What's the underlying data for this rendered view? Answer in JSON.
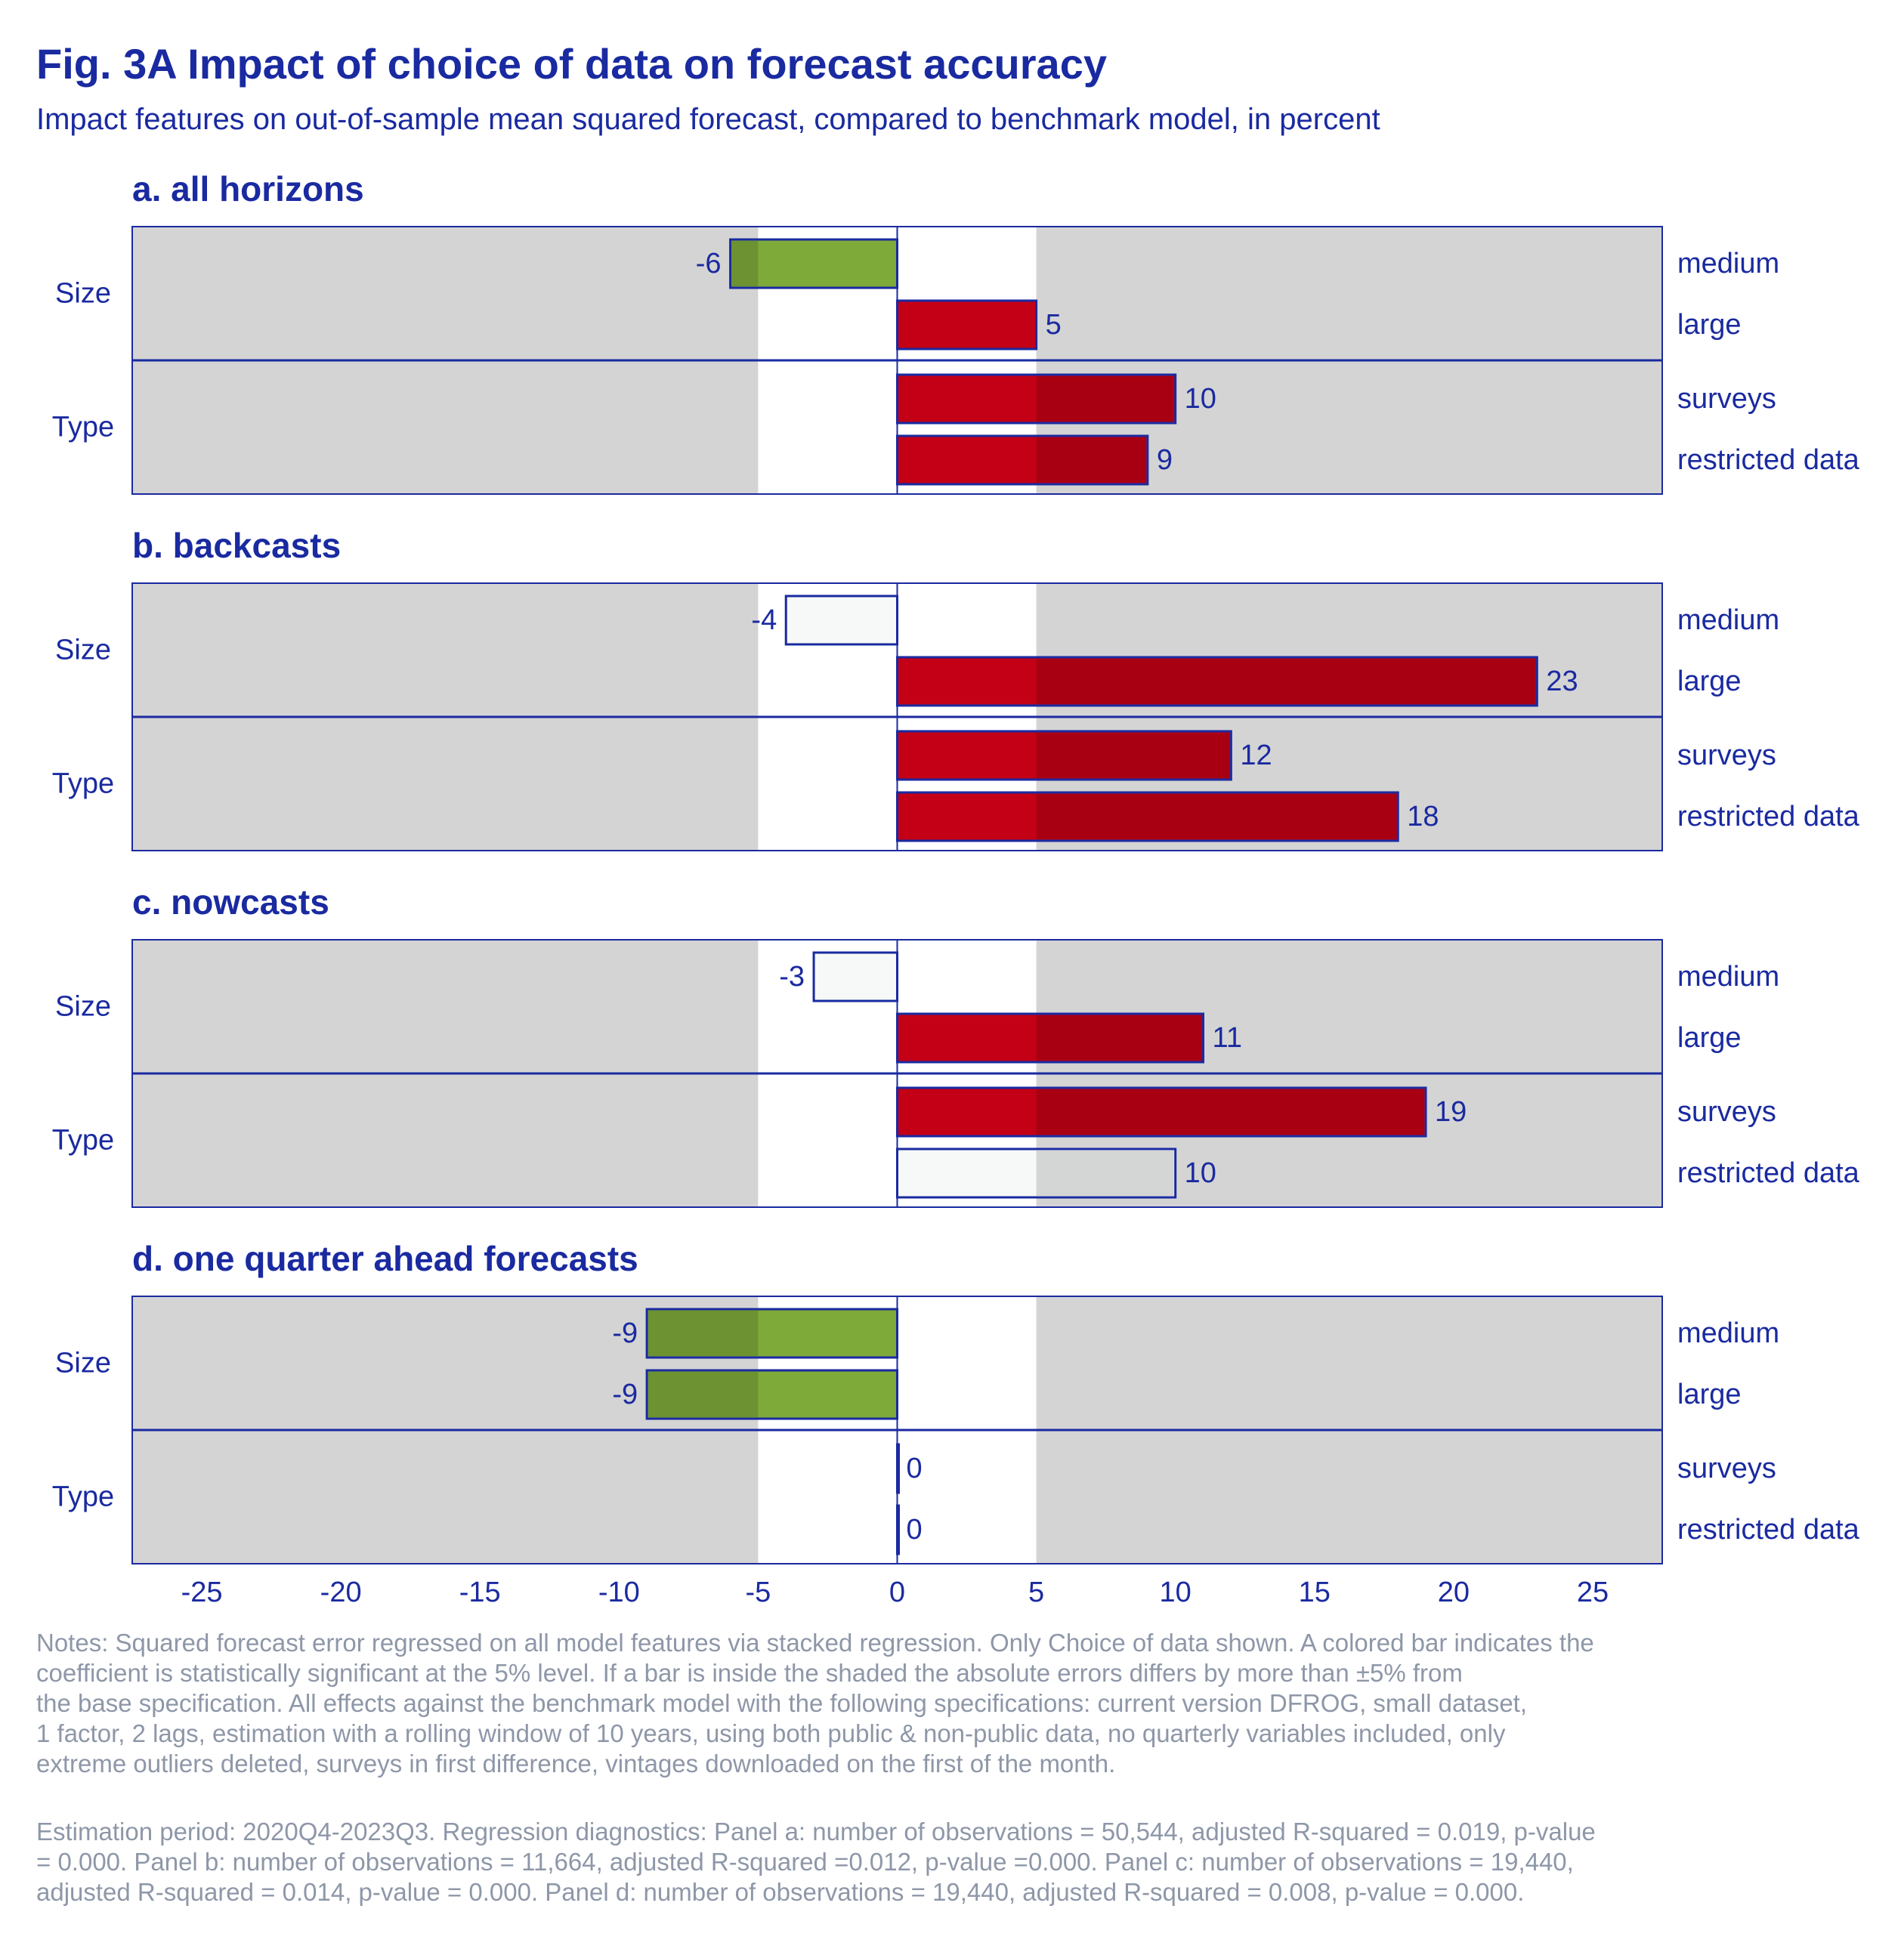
{
  "title": "Fig. 3A Impact of choice of data on forecast accuracy",
  "subtitle": "Impact features on out-of-sample mean squared forecast, compared to benchmark model, in percent",
  "notes": [
    "Notes: Squared forecast error regressed on all model features via stacked regression. Only Choice of data shown. A colored bar indicates the\ncoefficient is statistically significant at the 5% level. If a bar is inside the shaded the absolute errors differs by more than ±5% from\nthe base specification. All effects against the benchmark model with the following specifications: current version DFROG, small dataset,\n1 factor, 2 lags, estimation with a rolling window of 10 years, using both public & non-public data, no quarterly variables included, only\nextreme outliers deleted, surveys in first difference, vintages downloaded on the first of the month.",
    " Estimation period: 2020Q4-2023Q3. Regression diagnostics: Panel a: number of observations = 50,544, adjusted R-squared = 0.019, p-value\n= 0.000. Panel b: number of observations = 11,664, adjusted R-squared =0.012, p-value =0.000. Panel c: number of observations = 19,440,\nadjusted R-squared = 0.014, p-value = 0.000. Panel d: number of observations = 19,440, adjusted R-squared = 0.008, p-value = 0.000."
  ],
  "colors": {
    "text": "#1a2aa0",
    "shade": "#d4d4d4",
    "positive_significant": "#c40016",
    "negative_significant": "#7eaa3a",
    "not_significant": "#f7f9f8",
    "bar_edge": "#1a2aa0",
    "notes": "#8e97a8"
  },
  "chart_data": {
    "type": "bar",
    "orientation": "horizontal",
    "xlim": [
      -27.5,
      27.5
    ],
    "x_ticks": [
      -25,
      -20,
      -15,
      -10,
      -5,
      0,
      5,
      10,
      15,
      20,
      25
    ],
    "shaded_outside": [
      -5,
      5
    ],
    "groups": [
      {
        "label": "Size",
        "categories": [
          "medium",
          "large"
        ]
      },
      {
        "label": "Type",
        "categories": [
          "surveys",
          "restricted data"
        ]
      }
    ],
    "panels": [
      {
        "title": "a. all horizons",
        "values": [
          -6,
          5,
          10,
          9
        ],
        "labels": [
          "-6",
          "5",
          "10",
          "9"
        ],
        "significant": [
          true,
          true,
          true,
          true
        ]
      },
      {
        "title": "b. backcasts",
        "values": [
          -4,
          23,
          12,
          18
        ],
        "labels": [
          "-4",
          "23",
          "12",
          "18"
        ],
        "significant": [
          false,
          true,
          true,
          true
        ]
      },
      {
        "title": "c. nowcasts",
        "values": [
          -3,
          11,
          19,
          10
        ],
        "labels": [
          "-3",
          "11",
          "19",
          "10"
        ],
        "significant": [
          false,
          true,
          true,
          false
        ]
      },
      {
        "title": "d. one quarter ahead forecasts",
        "values": [
          -9,
          -9,
          0,
          0
        ],
        "labels": [
          "-9",
          "-9",
          "0",
          "0"
        ],
        "significant": [
          true,
          true,
          false,
          false
        ]
      }
    ]
  }
}
